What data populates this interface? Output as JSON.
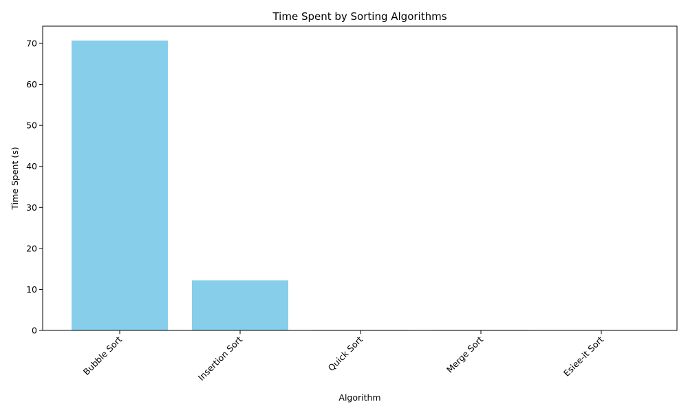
{
  "chart_data": {
    "type": "bar",
    "title": "Time Spent by Sorting Algorithms",
    "xlabel": "Algorithm",
    "ylabel": "Time Spent (s)",
    "categories": [
      "Bubble Sort",
      "Insertion Sort",
      "Quick Sort",
      "Merge Sort",
      "Esiee-it Sort"
    ],
    "values": [
      70.7,
      12.2,
      0.1,
      0.1,
      0.0
    ],
    "ylim": [
      0,
      74.2
    ],
    "yticks": [
      0,
      10,
      20,
      30,
      40,
      50,
      60,
      70
    ],
    "bar_color": "#87ceeb",
    "grid": false,
    "legend": "none",
    "x_tick_rotation_deg": 45
  }
}
